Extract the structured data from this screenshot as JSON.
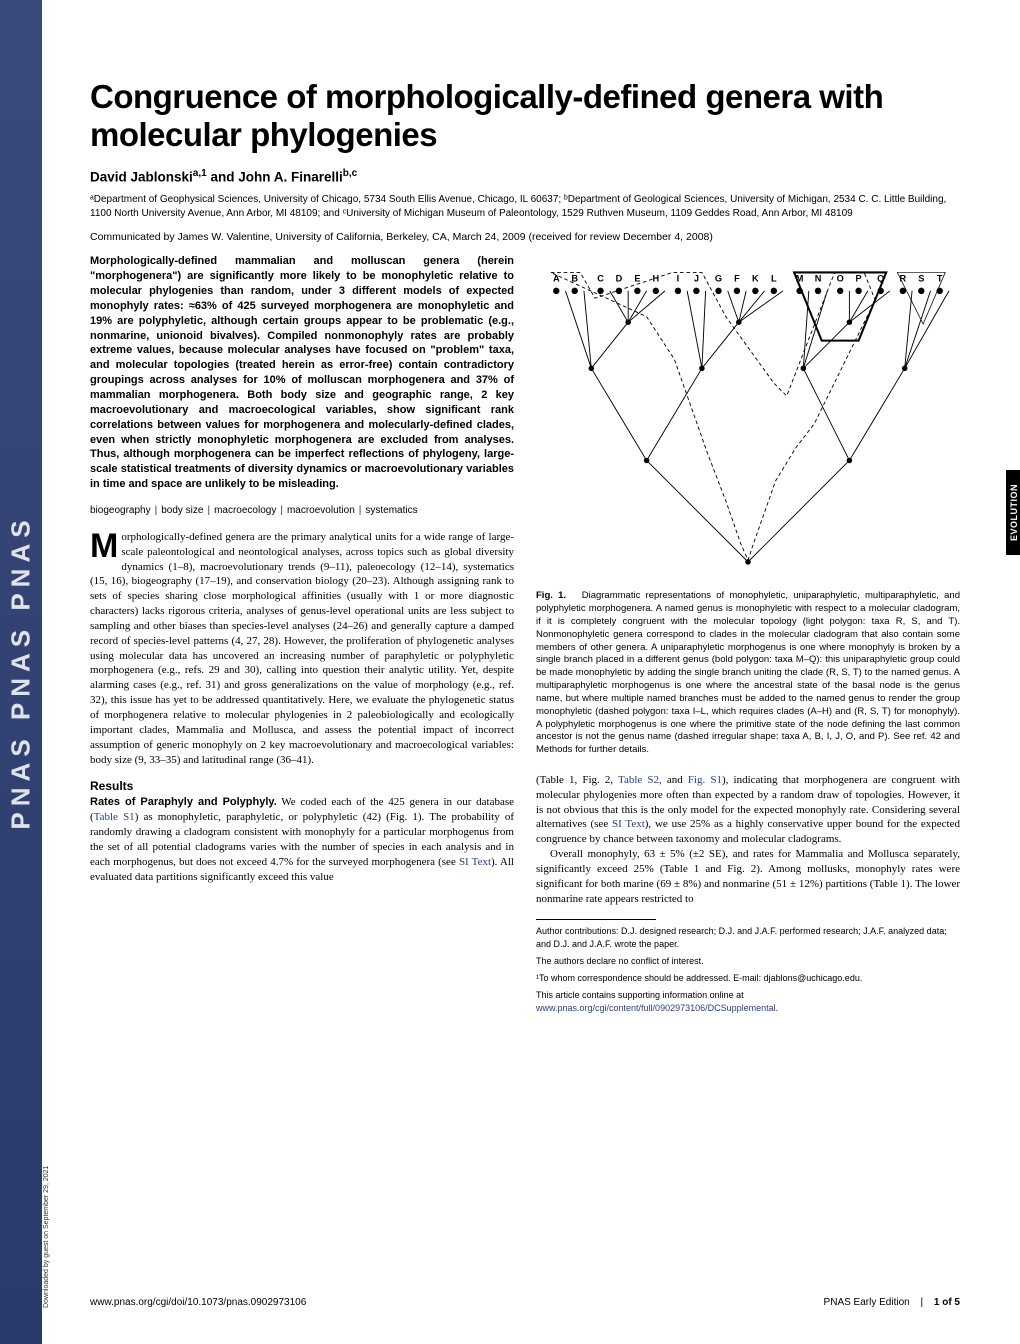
{
  "journal_strip": "PNAS   PNAS   PNAS",
  "side_tab": "EVOLUTION",
  "title": "Congruence of morphologically-defined genera with molecular phylogenies",
  "authors_html": "David Jablonski<sup>a,1</sup> and John A. Finarelli<sup>b,c</sup>",
  "affiliations": "ᵃDepartment of Geophysical Sciences, University of Chicago, 5734 South Ellis Avenue, Chicago, IL 60637; ᵇDepartment of Geological Sciences, University of Michigan, 2534 C. C. Little Building, 1100 North University Avenue, Ann Arbor, MI 48109; and ᶜUniversity of Michigan Museum of Paleontology, 1529 Ruthven Museum, 1109 Geddes Road, Ann Arbor, MI 48109",
  "communicated": "Communicated by James W. Valentine, University of California, Berkeley, CA, March 24, 2009 (received for review December 4, 2008)",
  "abstract": "Morphologically-defined mammalian and molluscan genera (herein \"morphogenera\") are significantly more likely to be monophyletic relative to molecular phylogenies than random, under 3 different models of expected monophyly rates: ≈63% of 425 surveyed morphogenera are monophyletic and 19% are polyphyletic, although certain groups appear to be problematic (e.g., nonmarine, unionoid bivalves). Compiled nonmonophyly rates are probably extreme values, because molecular analyses have focused on \"problem\" taxa, and molecular topologies (treated herein as error-free) contain contradictory groupings across analyses for 10% of molluscan morphogenera and 37% of mammalian morphogenera. Both body size and geographic range, 2 key macroevolutionary and macroecological variables, show significant rank correlations between values for morphogenera and molecularly-defined clades, even when strictly monophyletic morphogenera are excluded from analyses. Thus, although morphogenera can be imperfect reflections of phylogeny, large-scale statistical treatments of diversity dynamics or macroevolutionary variables in time and space are unlikely to be misleading.",
  "keywords": [
    "biogeography",
    "body size",
    "macroecology",
    "macroevolution",
    "systematics"
  ],
  "body": {
    "p1": "orphologically-defined genera are the primary analytical units for a wide range of large-scale paleontological and neontological analyses, across topics such as global diversity dynamics (1–8), macroevolutionary trends (9–11), paleoecology (12–14), systematics (15, 16), biogeography (17–19), and conservation biology (20–23). Although assigning rank to sets of species sharing close morphological affinities (usually with 1 or more diagnostic characters) lacks rigorous criteria, analyses of genus-level operational units are less subject to sampling and other biases than species-level analyses (24–26) and generally capture a damped record of species-level patterns (4, 27, 28). However, the proliferation of phylogenetic analyses using molecular data has uncovered an increasing number of paraphyletic or polyphyletic morphogenera (e.g., refs. 29 and 30), calling into question their analytic utility. Yet, despite alarming cases (e.g., ref. 31) and gross generalizations on the value of morphology (e.g., ref. 32), this issue has yet to be addressed quantitatively. Here, we evaluate the phylogenetic status of morphogenera relative to molecular phylogenies in 2 paleobiologically and ecologically important clades, Mammalia and Mollusca, and assess the potential impact of incorrect assumption of generic monophyly on 2 key macroevolutionary and macroecological variables: body size (9, 33–35) and latitudinal range (36–41).",
    "results_head": "Results",
    "p2a": "Rates of Paraphyly and Polyphyly.",
    "p2b": " We coded each of the 425 genera in our database (",
    "p2_link1": "Table S1",
    "p2c": ") as monophyletic, paraphyletic, or polyphyletic (42) (Fig. 1). The probability of randomly drawing a cladogram consistent with monophyly for a particular morphogenus from the set of all potential cladograms varies with the number of species in each analysis and in each morphogenus, but does not exceed 4.7% for the surveyed morphogenera (see ",
    "p2_link2": "SI Text",
    "p2d": "). All evaluated data partitions significantly exceed this value",
    "r1a": "(Table 1, Fig. 2, ",
    "r1_link1": "Table S2,",
    "r1b": " and ",
    "r1_link2": "Fig. S1",
    "r1c": "), indicating that morphogenera are congruent with molecular phylogenies more often than expected by a random draw of topologies. However, it is not obvious that this is the only model for the expected monophyly rate. Considering several alternatives (see ",
    "r1_link3": "SI Text",
    "r1d": "), we use 25% as a highly conservative upper bound for the expected congruence by chance between taxonomy and molecular cladograms.",
    "r2": "Overall monophyly, 63 ± 5% (±2 SE), and rates for Mammalia and Mollusca separately, significantly exceed 25% (Table 1 and Fig. 2). Among mollusks, monophyly rates were significant for both marine (69 ± 8%) and nonmarine (51 ± 12%) partitions (Table 1). The lower nonmarine rate appears restricted to"
  },
  "figure1": {
    "label": "Fig. 1.",
    "caption": "Diagrammatic representations of monophyletic, uniparaphyletic, multiparaphyletic, and polyphyletic morphogenera. A named genus is monophyletic with respect to a molecular cladogram, if it is completely congruent with the molecular topology (light polygon: taxa R, S, and T). Nonmonophyletic genera correspond to clades in the molecular cladogram that also contain some members of other genera. A uniparaphyletic morphogenus is one where monophyly is broken by a single branch placed in a different genus (bold polygon: taxa M–Q): this uniparaphyletic group could be made monophyletic by adding the single branch uniting the clade (R, S, T) to the named genus. A multiparaphyletic morphogenus is one where the ancestral state of the basal node is the genus name, but where multiple named branches must be added to the named genus to render the group monophyletic (dashed polygon: taxa I–L, which requires clades (A–H) and (R, S, T) for monophyly). A polyphyletic morphogenus is one where the primitive state of the node defining the last common ancestor is not the genus name (dashed irregular shape: taxa A, B, I, J, O, and P). See ref. 42 and Methods for further details.",
    "taxa": [
      "A",
      "B",
      "C",
      "D",
      "E",
      "H",
      "I",
      "J",
      "G",
      "F",
      "K",
      "L",
      "M",
      "N",
      "O",
      "P",
      "Q",
      "R",
      "S",
      "T"
    ],
    "taxa_x": [
      22,
      42,
      70,
      90,
      110,
      130,
      154,
      174,
      198,
      218,
      238,
      258,
      286,
      306,
      330,
      350,
      374,
      398,
      418,
      438
    ],
    "node_color": "#000000",
    "line_color": "#000000",
    "bg_color": "#ffffff",
    "font_size": 10
  },
  "footnotes": {
    "contrib": "Author contributions: D.J. designed research; D.J. and J.A.F. performed research; J.A.F. analyzed data; and D.J. and J.A.F. wrote the paper.",
    "conflict": "The authors declare no conflict of interest.",
    "corr": "¹To whom correspondence should be addressed. E-mail: djablons@uchicago.edu.",
    "si_a": "This article contains supporting information online at ",
    "si_link": "www.pnas.org/cgi/content/full/0902973106/DCSupplemental",
    "si_b": "."
  },
  "footer": {
    "doi": "www.pnas.org/cgi/doi/10.1073/pnas.0902973106",
    "right_a": "PNAS Early Edition",
    "right_b": "1 of 5"
  },
  "download_note": "Downloaded by guest on September 29, 2021",
  "colors": {
    "link": "#2a3a9a",
    "text": "#000000",
    "strip_grad_top": "#3a4a7a",
    "strip_grad_bot": "#2a3a6a"
  }
}
